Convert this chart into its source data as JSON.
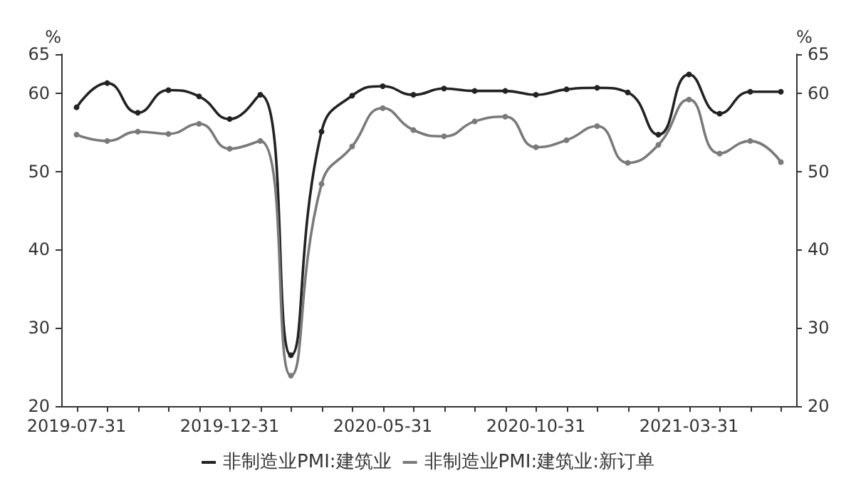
{
  "chart_data": {
    "type": "line",
    "categories": [
      "2019-07-31",
      null,
      null,
      null,
      null,
      "2019-12-31",
      null,
      null,
      null,
      null,
      "2020-05-31",
      null,
      null,
      null,
      null,
      "2020-10-31",
      null,
      null,
      null,
      null,
      "2021-03-31",
      null,
      null,
      null
    ],
    "series": [
      {
        "name": "非制造业PMI:建筑业",
        "color": "#222222",
        "values": [
          58.2,
          61.3,
          57.5,
          60.4,
          59.6,
          56.7,
          59.8,
          26.5,
          55.1,
          59.7,
          60.9,
          59.8,
          60.6,
          60.3,
          60.3,
          59.8,
          60.5,
          60.7,
          60.1,
          54.7,
          62.4,
          57.4,
          60.2,
          60.2
        ]
      },
      {
        "name": "非制造业PMI:建筑业:新订单",
        "color": "#7a7a7a",
        "values": [
          54.7,
          53.9,
          55.1,
          54.8,
          56.1,
          52.9,
          53.9,
          23.9,
          48.4,
          53.2,
          58.1,
          55.3,
          54.5,
          56.4,
          57.0,
          53.1,
          54.0,
          55.8,
          51.1,
          53.4,
          59.2,
          52.3,
          53.9,
          51.2
        ]
      }
    ],
    "ylabel": "%",
    "y2label": "%",
    "ylim": [
      20,
      65
    ],
    "yticks": [
      20,
      30,
      40,
      50,
      60,
      65
    ],
    "y2lim": [
      20,
      65
    ],
    "y2ticks": [
      20,
      30,
      40,
      50,
      60,
      65
    ],
    "marker": "circle",
    "line_style": "solid",
    "legend": "bottom",
    "grid": false
  }
}
